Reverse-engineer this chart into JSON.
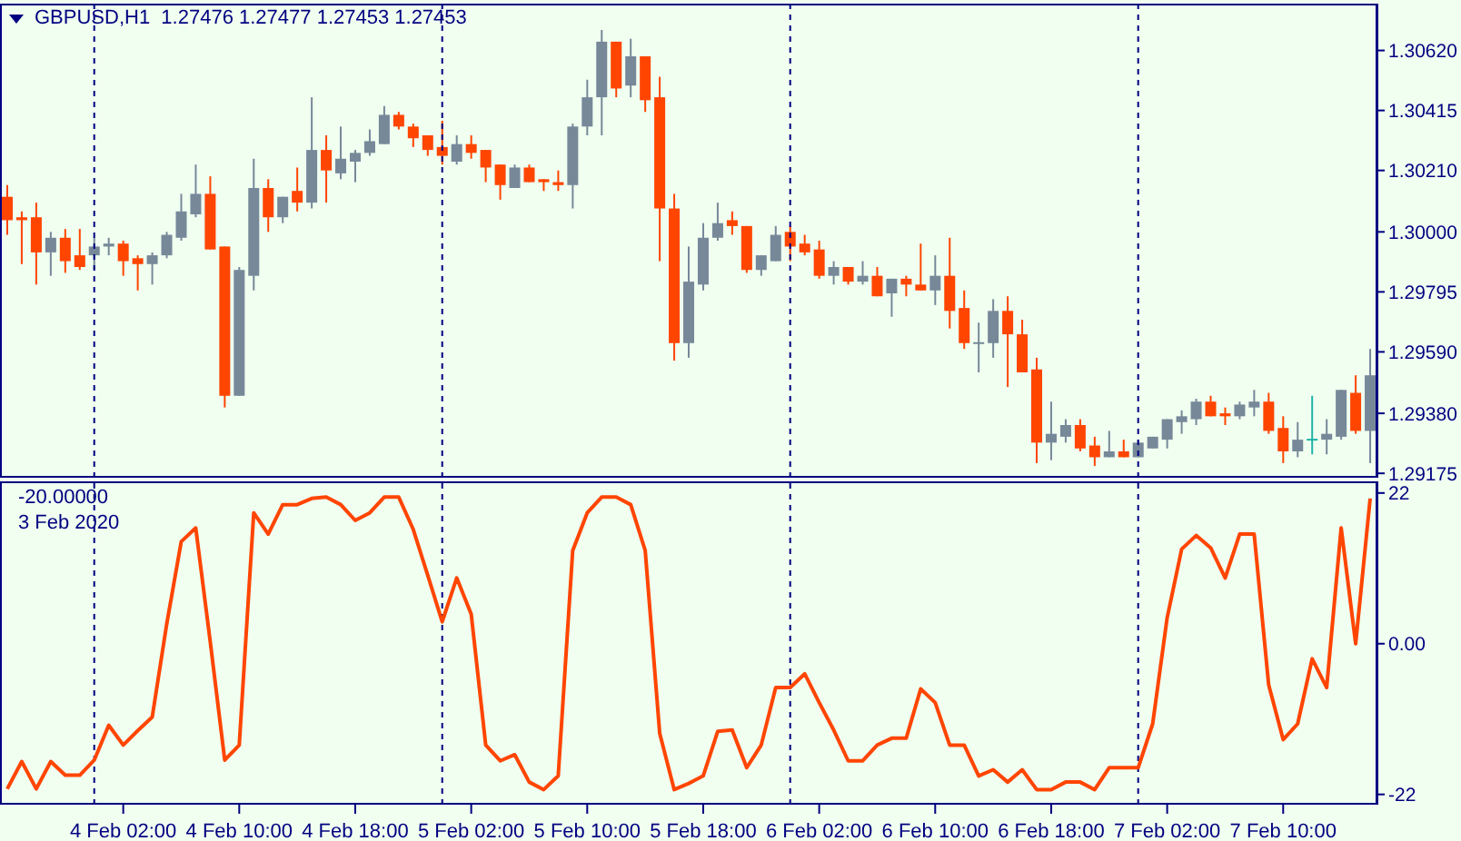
{
  "chart_data": [
    {
      "type": "candlestick",
      "title": "GBPUSD,H1  1.27476 1.27477 1.27453 1.27453",
      "x": [
        "2020-02-03T18:00",
        "2020-02-03T19:00",
        "2020-02-03T20:00",
        "2020-02-03T21:00",
        "2020-02-03T22:00",
        "2020-02-03T23:00",
        "2020-02-04T00:00",
        "2020-02-04T01:00",
        "2020-02-04T02:00",
        "2020-02-04T03:00",
        "2020-02-04T04:00",
        "2020-02-04T05:00",
        "2020-02-04T06:00",
        "2020-02-04T07:00",
        "2020-02-04T08:00",
        "2020-02-04T09:00",
        "2020-02-04T10:00",
        "2020-02-04T11:00",
        "2020-02-04T12:00",
        "2020-02-04T13:00",
        "2020-02-04T14:00",
        "2020-02-04T15:00",
        "2020-02-04T16:00",
        "2020-02-04T17:00",
        "2020-02-04T18:00",
        "2020-02-04T19:00",
        "2020-02-04T20:00",
        "2020-02-04T21:00",
        "2020-02-04T22:00",
        "2020-02-04T23:00",
        "2020-02-05T00:00",
        "2020-02-05T01:00",
        "2020-02-05T02:00",
        "2020-02-05T03:00",
        "2020-02-05T04:00",
        "2020-02-05T05:00",
        "2020-02-05T06:00",
        "2020-02-05T07:00",
        "2020-02-05T08:00",
        "2020-02-05T09:00",
        "2020-02-05T10:00",
        "2020-02-05T11:00",
        "2020-02-05T12:00",
        "2020-02-05T13:00",
        "2020-02-05T14:00",
        "2020-02-05T15:00",
        "2020-02-05T16:00",
        "2020-02-05T17:00",
        "2020-02-05T18:00",
        "2020-02-05T19:00",
        "2020-02-05T20:00",
        "2020-02-05T21:00",
        "2020-02-05T22:00",
        "2020-02-05T23:00",
        "2020-02-06T00:00",
        "2020-02-06T01:00",
        "2020-02-06T02:00",
        "2020-02-06T03:00",
        "2020-02-06T04:00",
        "2020-02-06T05:00",
        "2020-02-06T06:00",
        "2020-02-06T07:00",
        "2020-02-06T08:00",
        "2020-02-06T09:00",
        "2020-02-06T10:00",
        "2020-02-06T11:00",
        "2020-02-06T12:00",
        "2020-02-06T13:00",
        "2020-02-06T14:00",
        "2020-02-06T15:00",
        "2020-02-06T16:00",
        "2020-02-06T17:00",
        "2020-02-06T18:00",
        "2020-02-06T19:00",
        "2020-02-06T20:00",
        "2020-02-06T21:00",
        "2020-02-06T22:00",
        "2020-02-06T23:00",
        "2020-02-07T00:00",
        "2020-02-07T01:00",
        "2020-02-07T02:00",
        "2020-02-07T03:00",
        "2020-02-07T04:00",
        "2020-02-07T05:00",
        "2020-02-07T06:00",
        "2020-02-07T07:00",
        "2020-02-07T08:00",
        "2020-02-07T09:00",
        "2020-02-07T10:00",
        "2020-02-07T11:00",
        "2020-02-07T12:00",
        "2020-02-07T13:00",
        "2020-02-07T14:00",
        "2020-02-07T15:00",
        "2020-02-07T16:00"
      ],
      "ohlc": [
        [
          1.3012,
          1.3016,
          1.2999,
          1.3004
        ],
        [
          1.3005,
          1.3007,
          1.2989,
          1.3004
        ],
        [
          1.3005,
          1.301,
          1.2982,
          1.2993
        ],
        [
          1.2993,
          1.3,
          1.2985,
          1.2998
        ],
        [
          1.2998,
          1.3001,
          1.2986,
          1.299
        ],
        [
          1.2992,
          1.3001,
          1.2987,
          1.2988
        ],
        [
          1.2992,
          1.2998,
          1.2987,
          1.2995
        ],
        [
          1.2995,
          1.2998,
          1.2992,
          1.2996
        ],
        [
          1.2996,
          1.2997,
          1.2985,
          1.299
        ],
        [
          1.2991,
          1.2992,
          1.298,
          1.2989
        ],
        [
          1.2989,
          1.2993,
          1.2982,
          1.2992
        ],
        [
          1.2992,
          1.3,
          1.2991,
          1.2999
        ],
        [
          1.2998,
          1.3013,
          1.2997,
          1.3007
        ],
        [
          1.3006,
          1.3023,
          1.3005,
          1.3013
        ],
        [
          1.3013,
          1.3019,
          1.2994,
          1.2994
        ],
        [
          1.2995,
          1.2995,
          1.294,
          1.2944
        ],
        [
          1.2944,
          1.2988,
          1.2944,
          1.2987
        ],
        [
          1.2985,
          1.3025,
          1.298,
          1.3015
        ],
        [
          1.3015,
          1.3018,
          1.3,
          1.3005
        ],
        [
          1.3005,
          1.3012,
          1.3003,
          1.3012
        ],
        [
          1.3014,
          1.3022,
          1.3007,
          1.301
        ],
        [
          1.301,
          1.3046,
          1.3008,
          1.3028
        ],
        [
          1.3028,
          1.3033,
          1.301,
          1.3021
        ],
        [
          1.302,
          1.3036,
          1.3018,
          1.3025
        ],
        [
          1.3024,
          1.3028,
          1.3017,
          1.3027
        ],
        [
          1.3027,
          1.3035,
          1.3026,
          1.3031
        ],
        [
          1.303,
          1.3043,
          1.303,
          1.304
        ],
        [
          1.304,
          1.3041,
          1.3035,
          1.3036
        ],
        [
          1.3036,
          1.3037,
          1.3029,
          1.3032
        ],
        [
          1.3033,
          1.3033,
          1.3026,
          1.3028
        ],
        [
          1.3029,
          1.3038,
          1.3023,
          1.3026
        ],
        [
          1.3024,
          1.3033,
          1.3023,
          1.303
        ],
        [
          1.303,
          1.3033,
          1.3025,
          1.3027
        ],
        [
          1.3028,
          1.3028,
          1.3017,
          1.3022
        ],
        [
          1.3023,
          1.3023,
          1.3011,
          1.3016
        ],
        [
          1.3015,
          1.3023,
          1.3015,
          1.3022
        ],
        [
          1.3022,
          1.3023,
          1.3017,
          1.3017
        ],
        [
          1.3018,
          1.3018,
          1.3014,
          1.3017
        ],
        [
          1.3017,
          1.3021,
          1.3014,
          1.3016
        ],
        [
          1.3016,
          1.3037,
          1.3008,
          1.3036
        ],
        [
          1.3036,
          1.3052,
          1.3033,
          1.3046
        ],
        [
          1.3046,
          1.3069,
          1.3033,
          1.3065
        ],
        [
          1.3065,
          1.3065,
          1.3046,
          1.3049
        ],
        [
          1.305,
          1.3066,
          1.3046,
          1.306
        ],
        [
          1.306,
          1.306,
          1.3041,
          1.3045
        ],
        [
          1.3046,
          1.3053,
          1.299,
          1.3008
        ],
        [
          1.3008,
          1.3013,
          1.2956,
          1.2962
        ],
        [
          1.2962,
          1.2995,
          1.2957,
          1.2983
        ],
        [
          1.2982,
          1.3003,
          1.298,
          1.2998
        ],
        [
          1.2998,
          1.301,
          1.2997,
          1.3003
        ],
        [
          1.3004,
          1.3007,
          1.2999,
          1.3002
        ],
        [
          1.3002,
          1.3002,
          1.2986,
          1.2987
        ],
        [
          1.2987,
          1.2992,
          1.2985,
          1.2992
        ],
        [
          1.299,
          1.3002,
          1.299,
          1.2999
        ],
        [
          1.3,
          1.3002,
          1.299,
          1.2995
        ],
        [
          1.2996,
          1.2999,
          1.2992,
          1.2993
        ],
        [
          1.2994,
          1.2997,
          1.2984,
          1.2985
        ],
        [
          1.2985,
          1.299,
          1.2982,
          1.2988
        ],
        [
          1.2988,
          1.2988,
          1.2982,
          1.2983
        ],
        [
          1.2983,
          1.299,
          1.2982,
          1.2985
        ],
        [
          1.2985,
          1.2988,
          1.2978,
          1.2978
        ],
        [
          1.2979,
          1.2984,
          1.2971,
          1.2984
        ],
        [
          1.2984,
          1.2985,
          1.2978,
          1.2982
        ],
        [
          1.2982,
          1.2996,
          1.298,
          1.298
        ],
        [
          1.298,
          1.2992,
          1.2975,
          1.2985
        ],
        [
          1.2985,
          1.2998,
          1.2967,
          1.2973
        ],
        [
          1.2974,
          1.298,
          1.296,
          1.2962
        ],
        [
          1.2962,
          1.2969,
          1.2952,
          1.2962
        ],
        [
          1.2962,
          1.2977,
          1.2957,
          1.2973
        ],
        [
          1.2973,
          1.2978,
          1.2947,
          1.2965
        ],
        [
          1.2965,
          1.297,
          1.2952,
          1.2952
        ],
        [
          1.2953,
          1.2957,
          1.2921,
          1.2928
        ],
        [
          1.2928,
          1.2942,
          1.2922,
          1.2931
        ],
        [
          1.293,
          1.2936,
          1.2928,
          1.2934
        ],
        [
          1.2934,
          1.2936,
          1.2925,
          1.2926
        ],
        [
          1.2927,
          1.293,
          1.292,
          1.2923
        ],
        [
          1.2923,
          1.2932,
          1.2923,
          1.2925
        ],
        [
          1.2925,
          1.2929,
          1.2923,
          1.2923
        ],
        [
          1.2923,
          1.2929,
          1.2923,
          1.2928
        ],
        [
          1.2926,
          1.293,
          1.2926,
          1.293
        ],
        [
          1.2929,
          1.2936,
          1.2926,
          1.2936
        ],
        [
          1.2935,
          1.2939,
          1.2931,
          1.2937
        ],
        [
          1.2936,
          1.2943,
          1.2934,
          1.2942
        ],
        [
          1.2942,
          1.2944,
          1.2937,
          1.2937
        ],
        [
          1.2938,
          1.294,
          1.2934,
          1.2937
        ],
        [
          1.2937,
          1.2942,
          1.2936,
          1.2941
        ],
        [
          1.294,
          1.2946,
          1.2937,
          1.2942
        ],
        [
          1.2942,
          1.2945,
          1.2931,
          1.2932
        ],
        [
          1.2933,
          1.2937,
          1.2921,
          1.2925
        ],
        [
          1.2925,
          1.2935,
          1.2923,
          1.2929
        ],
        [
          1.2929,
          1.2944,
          1.2924,
          1.2929
        ],
        [
          1.2929,
          1.2936,
          1.2924,
          1.2931
        ],
        [
          1.293,
          1.2946,
          1.2929,
          1.2946
        ],
        [
          1.2945,
          1.2951,
          1.2931,
          1.2932
        ],
        [
          1.2932,
          1.296,
          1.2921,
          1.2951
        ]
      ],
      "colors": [
        "#ff4500",
        "#ff4500",
        "#ff4500",
        "#778899",
        "#ff4500",
        "#ff4500",
        "#778899",
        "#778899",
        "#ff4500",
        "#ff4500",
        "#778899",
        "#778899",
        "#778899",
        "#778899",
        "#ff4500",
        "#ff4500",
        "#778899",
        "#778899",
        "#ff4500",
        "#778899",
        "#ff4500",
        "#778899",
        "#ff4500",
        "#778899",
        "#778899",
        "#778899",
        "#778899",
        "#ff4500",
        "#ff4500",
        "#ff4500",
        "#ff4500",
        "#778899",
        "#ff4500",
        "#ff4500",
        "#ff4500",
        "#778899",
        "#ff4500",
        "#ff4500",
        "#ff4500",
        "#778899",
        "#778899",
        "#778899",
        "#ff4500",
        "#778899",
        "#ff4500",
        "#ff4500",
        "#ff4500",
        "#778899",
        "#778899",
        "#778899",
        "#ff4500",
        "#ff4500",
        "#778899",
        "#778899",
        "#ff4500",
        "#ff4500",
        "#ff4500",
        "#778899",
        "#ff4500",
        "#778899",
        "#ff4500",
        "#778899",
        "#ff4500",
        "#ff4500",
        "#778899",
        "#ff4500",
        "#ff4500",
        "#778899",
        "#778899",
        "#ff4500",
        "#ff4500",
        "#ff4500",
        "#778899",
        "#778899",
        "#ff4500",
        "#ff4500",
        "#778899",
        "#ff4500",
        "#778899",
        "#778899",
        "#778899",
        "#778899",
        "#778899",
        "#ff4500",
        "#ff4500",
        "#778899",
        "#778899",
        "#ff4500",
        "#ff4500",
        "#778899",
        "#20b2aa",
        "#778899",
        "#778899",
        "#ff4500",
        "#778899"
      ],
      "xlim": [
        "2020-02-03T17:30",
        "2020-02-07T16:30"
      ],
      "ylim": [
        1.2916,
        1.3078
      ],
      "yticks": [
        {
          "value": 1.3062,
          "label": "1.30620"
        },
        1.30415,
        {
          "value": 1.3021,
          "label": "1.30210"
        },
        {
          "value": 1.3,
          "label": "1.30000"
        },
        1.29795,
        {
          "value": 1.2959,
          "label": "1.29590"
        },
        {
          "value": 1.2938,
          "label": "1.29380"
        },
        1.29175
      ],
      "tick_labels": "y",
      "ref_lines": [
        {
          "axis": "x",
          "value": "2020-02-04T00:00",
          "color": "#000080",
          "line_style": "dashed"
        },
        {
          "axis": "x",
          "value": "2020-02-05T00:00",
          "color": "#000080",
          "line_style": "dashed"
        },
        {
          "axis": "x",
          "value": "2020-02-06T00:00",
          "color": "#000080",
          "line_style": "dashed"
        },
        {
          "axis": "x",
          "value": "2020-02-07T00:00",
          "color": "#000080",
          "line_style": "dashed"
        }
      ]
    },
    {
      "type": "line",
      "annotations": [
        "-20.00000",
        "3 Feb 2020"
      ],
      "x": [
        "2020-02-03T18:00",
        "2020-02-03T19:00",
        "2020-02-03T20:00",
        "2020-02-03T21:00",
        "2020-02-03T22:00",
        "2020-02-03T23:00",
        "2020-02-04T00:00",
        "2020-02-04T01:00",
        "2020-02-04T02:00",
        "2020-02-04T03:00",
        "2020-02-04T04:00",
        "2020-02-04T05:00",
        "2020-02-04T06:00",
        "2020-02-04T07:00",
        "2020-02-04T08:00",
        "2020-02-04T09:00",
        "2020-02-04T10:00",
        "2020-02-04T11:00",
        "2020-02-04T12:00",
        "2020-02-04T13:00",
        "2020-02-04T14:00",
        "2020-02-04T15:00",
        "2020-02-04T16:00",
        "2020-02-04T17:00",
        "2020-02-04T18:00",
        "2020-02-04T19:00",
        "2020-02-04T20:00",
        "2020-02-04T21:00",
        "2020-02-04T22:00",
        "2020-02-04T23:00",
        "2020-02-05T00:00",
        "2020-02-05T01:00",
        "2020-02-05T02:00",
        "2020-02-05T03:00",
        "2020-02-05T04:00",
        "2020-02-05T05:00",
        "2020-02-05T06:00",
        "2020-02-05T07:00",
        "2020-02-05T08:00",
        "2020-02-05T09:00",
        "2020-02-05T10:00",
        "2020-02-05T11:00",
        "2020-02-05T12:00",
        "2020-02-05T13:00",
        "2020-02-05T14:00",
        "2020-02-05T15:00",
        "2020-02-05T16:00",
        "2020-02-05T17:00",
        "2020-02-05T18:00",
        "2020-02-05T19:00",
        "2020-02-05T20:00",
        "2020-02-05T21:00",
        "2020-02-05T22:00",
        "2020-02-05T23:00",
        "2020-02-06T00:00",
        "2020-02-06T01:00",
        "2020-02-06T02:00",
        "2020-02-06T03:00",
        "2020-02-06T04:00",
        "2020-02-06T05:00",
        "2020-02-06T06:00",
        "2020-02-06T07:00",
        "2020-02-06T08:00",
        "2020-02-06T09:00",
        "2020-02-06T10:00",
        "2020-02-06T11:00",
        "2020-02-06T12:00",
        "2020-02-06T13:00",
        "2020-02-06T14:00",
        "2020-02-06T15:00",
        "2020-02-06T16:00",
        "2020-02-06T17:00",
        "2020-02-06T18:00",
        "2020-02-06T19:00",
        "2020-02-06T20:00",
        "2020-02-06T21:00",
        "2020-02-06T22:00",
        "2020-02-06T23:00",
        "2020-02-07T00:00",
        "2020-02-07T01:00",
        "2020-02-07T02:00",
        "2020-02-07T03:00",
        "2020-02-07T04:00",
        "2020-02-07T05:00",
        "2020-02-07T06:00",
        "2020-02-07T07:00",
        "2020-02-07T08:00",
        "2020-02-07T09:00",
        "2020-02-07T10:00",
        "2020-02-07T11:00",
        "2020-02-07T12:00",
        "2020-02-07T13:00",
        "2020-02-07T14:00",
        "2020-02-07T15:00",
        "2020-02-07T16:00"
      ],
      "series": [
        {
          "color": "#ff4500",
          "values": [
            -21.2,
            -17.2,
            -21.2,
            -17.2,
            -19.2,
            -19.2,
            -17.0,
            -11.9,
            -14.8,
            -12.7,
            -10.7,
            2.9,
            14.9,
            16.9,
            0.3,
            -17.0,
            -14.8,
            19.1,
            16.0,
            20.3,
            20.3,
            21.2,
            21.4,
            20.3,
            18.0,
            19.1,
            21.4,
            21.4,
            16.7,
            10.0,
            3.2,
            9.6,
            4.3,
            -14.8,
            -17.1,
            -16.2,
            -20.2,
            -21.3,
            -19.3,
            13.6,
            19.1,
            21.4,
            21.4,
            20.3,
            13.6,
            -13.1,
            -21.3,
            -20.4,
            -19.3,
            -12.8,
            -12.6,
            -18.1,
            -14.8,
            -6.4,
            -6.4,
            -4.4,
            -8.6,
            -12.6,
            -17.1,
            -17.1,
            -14.8,
            -13.8,
            -13.8,
            -6.6,
            -8.6,
            -14.8,
            -14.8,
            -19.3,
            -18.4,
            -20.2,
            -18.4,
            -21.3,
            -21.3,
            -20.2,
            -20.2,
            -21.3,
            -18.1,
            -18.1,
            -18.1,
            -11.7,
            3.8,
            13.8,
            15.8,
            14.0,
            9.6,
            16.0,
            16.0,
            -6.0,
            -14.0,
            -11.7,
            -2.2,
            -6.4,
            16.9,
            0.0,
            21.2
          ]
        }
      ],
      "xlim": [
        "2020-02-03T17:30",
        "2020-02-07T16:30"
      ],
      "xticks": [
        {
          "value": "2020-02-04T02:00",
          "label": "4 Feb 02:00"
        },
        {
          "value": "2020-02-04T10:00",
          "label": "4 Feb 10:00"
        },
        {
          "value": "2020-02-04T18:00",
          "label": "4 Feb 18:00"
        },
        {
          "value": "2020-02-05T02:00",
          "label": "5 Feb 02:00"
        },
        {
          "value": "2020-02-05T10:00",
          "label": "5 Feb 10:00"
        },
        {
          "value": "2020-02-05T18:00",
          "label": "5 Feb 18:00"
        },
        {
          "value": "2020-02-06T02:00",
          "label": "6 Feb 02:00"
        },
        {
          "value": "2020-02-06T10:00",
          "label": "6 Feb 10:00"
        },
        {
          "value": "2020-02-06T18:00",
          "label": "6 Feb 18:00"
        },
        {
          "value": "2020-02-07T02:00",
          "label": "7 Feb 02:00"
        },
        {
          "value": "2020-02-07T10:00",
          "label": "7 Feb 10:00"
        }
      ],
      "ylim": [
        -23.5,
        23.7
      ],
      "yticks": [
        22,
        {
          "value": 0,
          "label": "0.00"
        },
        -22
      ],
      "ref_lines": [
        {
          "axis": "x",
          "value": "2020-02-04T00:00",
          "color": "#000080",
          "line_style": "dashed"
        },
        {
          "axis": "x",
          "value": "2020-02-05T00:00",
          "color": "#000080",
          "line_style": "dashed"
        },
        {
          "axis": "x",
          "value": "2020-02-06T00:00",
          "color": "#000080",
          "line_style": "dashed"
        },
        {
          "axis": "x",
          "value": "2020-02-07T00:00",
          "color": "#000080",
          "line_style": "dashed"
        }
      ]
    }
  ]
}
